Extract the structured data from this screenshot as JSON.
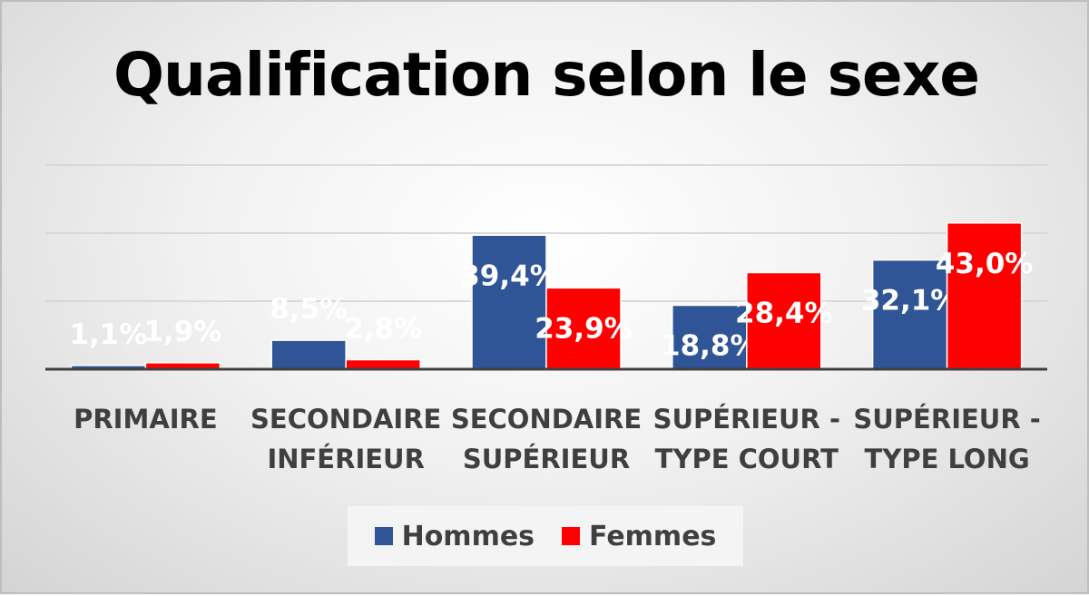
{
  "chart_data": {
    "type": "bar",
    "title": "Qualification selon le sexe",
    "categories": [
      [
        "PRIMAIRE"
      ],
      [
        "SECONDAIRE",
        "INFÉRIEUR"
      ],
      [
        "SECONDAIRE",
        "SUPÉRIEUR"
      ],
      [
        "SUPÉRIEUR -",
        "TYPE COURT"
      ],
      [
        "SUPÉRIEUR -",
        "TYPE LONG"
      ]
    ],
    "series": [
      {
        "name": "Hommes",
        "color": "#2f5597",
        "values": [
          1.1,
          8.5,
          39.4,
          18.8,
          32.1
        ],
        "labels": [
          "1,1%",
          "8,5%",
          "39,4%",
          "18,8%",
          "32,1%"
        ]
      },
      {
        "name": "Femmes",
        "color": "#ff0000",
        "values": [
          1.9,
          2.8,
          23.9,
          28.4,
          43.0
        ],
        "labels": [
          "1,9%",
          "2,8%",
          "23,9%",
          "28,4%",
          "43,0%"
        ]
      }
    ],
    "ylim": [
      0,
      60
    ],
    "grid": true,
    "legend": "bottom"
  }
}
